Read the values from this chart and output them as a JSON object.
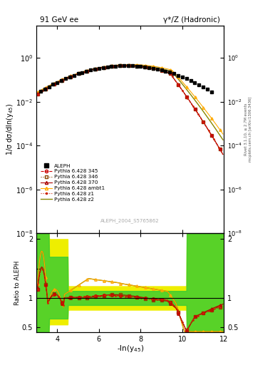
{
  "title_left": "91 GeV ee",
  "title_right": "γ*/Z (Hadronic)",
  "ylabel_main": "1/σ dσ/dln(y$_{45}$)",
  "ylabel_ratio": "Ratio to ALEPH",
  "xlabel": "-ln(y$_{45}$)",
  "xlim": [
    3,
    12
  ],
  "ylim_main": [
    1e-08,
    30
  ],
  "ylim_ratio": [
    0.42,
    2.1
  ],
  "watermark": "ALEPH_2004_S5765862",
  "right_label1": "Rivet 3.1.10, ≥ 2.7M events",
  "right_label2": "mcplots.cern.ch [arXiv:1306.3436]",
  "colors": {
    "data": "#000000",
    "345": "#cc0000",
    "346": "#8b4500",
    "370": "#aa0000",
    "ambt1": "#ffaa00",
    "z1": "#cc2200",
    "z2": "#888800",
    "band_green": "#33cc33",
    "band_yellow": "#eeee00"
  }
}
